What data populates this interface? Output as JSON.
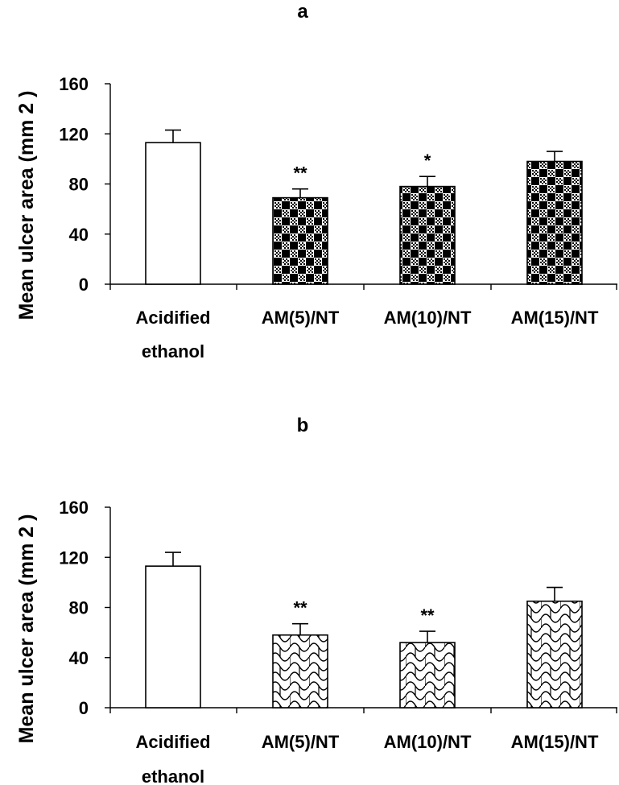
{
  "chart_data": [
    {
      "type": "bar",
      "panel": "a",
      "ylabel": "Mean ulcer area (mm 2 )",
      "ylim": [
        0,
        160
      ],
      "yticks": [
        0,
        40,
        80,
        120,
        160
      ],
      "grid": false,
      "categories": [
        {
          "line1": "Acidified",
          "line2": "ethanol"
        },
        {
          "line1": "AM(5)/NT",
          "line2": ""
        },
        {
          "line1": "AM(10)/NT",
          "line2": ""
        },
        {
          "line1": "AM(15)/NT",
          "line2": ""
        }
      ],
      "values": [
        113,
        69,
        78,
        98
      ],
      "errors": [
        10,
        7,
        8,
        8
      ],
      "significance": [
        "",
        "**",
        "*",
        ""
      ],
      "fills": [
        "plain",
        "checker",
        "checker",
        "checker"
      ]
    },
    {
      "type": "bar",
      "panel": "b",
      "ylabel": "Mean ulcer area (mm 2 )",
      "ylim": [
        0,
        160
      ],
      "yticks": [
        0,
        40,
        80,
        120,
        160
      ],
      "grid": false,
      "categories": [
        {
          "line1": "Acidified",
          "line2": "ethanol"
        },
        {
          "line1": "AM(5)/NT",
          "line2": ""
        },
        {
          "line1": "AM(10)/NT",
          "line2": ""
        },
        {
          "line1": "AM(15)/NT",
          "line2": ""
        }
      ],
      "values": [
        113,
        58,
        52,
        85
      ],
      "errors": [
        11,
        9,
        9,
        11
      ],
      "significance": [
        "",
        "**",
        "**",
        ""
      ],
      "fills": [
        "plain",
        "scale",
        "scale",
        "scale"
      ]
    }
  ]
}
